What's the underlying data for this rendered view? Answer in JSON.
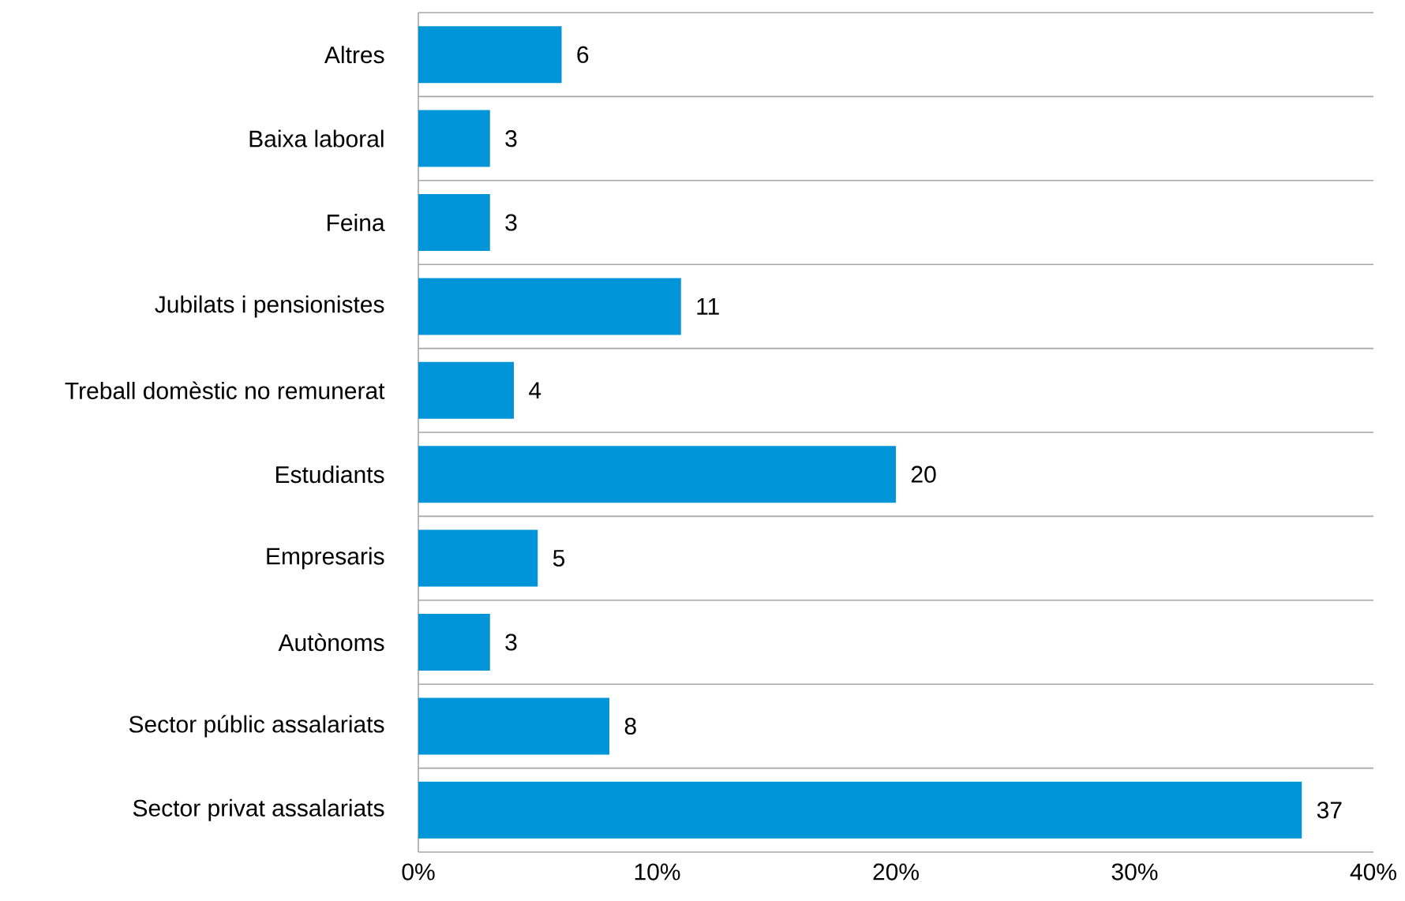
{
  "chart_data": {
    "type": "bar",
    "orientation": "horizontal",
    "categories": [
      "Altres",
      "Baixa laboral",
      "Feina",
      "Jubilats i pensionistes",
      "Treball domèstic no remunerat",
      "Estudiants",
      "Empresaris",
      "Autònoms",
      "Sector públic assalariats",
      "Sector privat assalariats"
    ],
    "values": [
      6,
      3,
      3,
      11,
      4,
      20,
      5,
      3,
      8,
      37
    ],
    "color": "#0095d9",
    "data_labels": true,
    "grid": "y",
    "xlim": [
      0,
      40
    ],
    "xticks": [
      {
        "value": 0,
        "label": "0%"
      },
      {
        "value": 10,
        "label": "10%"
      },
      {
        "value": 20,
        "label": "20%"
      },
      {
        "value": 30,
        "label": "30%"
      },
      {
        "value": 40,
        "label": "40%"
      }
    ]
  }
}
